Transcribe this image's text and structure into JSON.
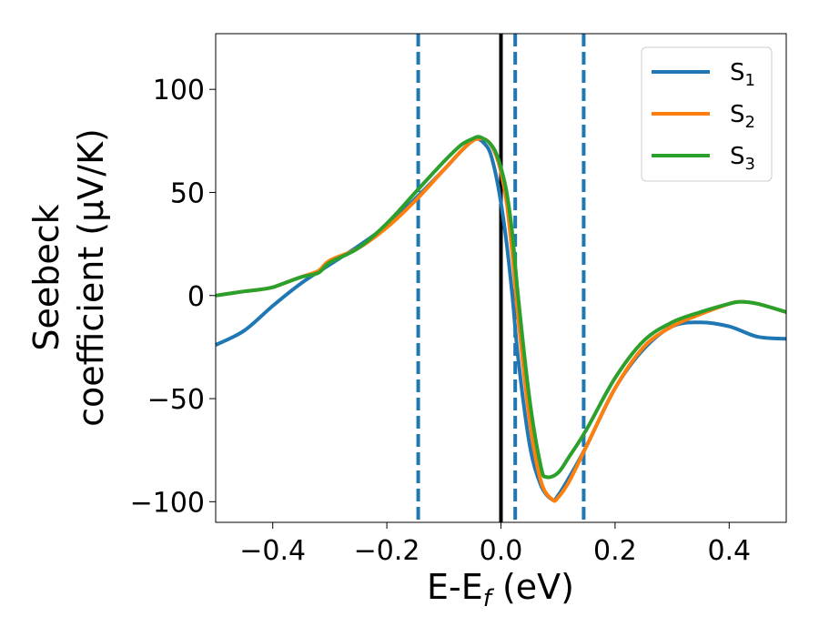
{
  "chart_data": {
    "type": "line",
    "title": "",
    "xlabel": {
      "main": "E-E",
      "sub": "f",
      "suffix": " (eV)"
    },
    "ylabel": {
      "line1": "Seebeck",
      "line2": "coefficient  (μV/K)"
    },
    "xlim": [
      -0.5,
      0.5
    ],
    "ylim": [
      -110,
      127
    ],
    "xticks": [
      -0.4,
      -0.2,
      0.0,
      0.2,
      0.4
    ],
    "xtick_labels": [
      "−0.4",
      "−0.2",
      "0.0",
      "0.2",
      "0.4"
    ],
    "yticks": [
      -100,
      -50,
      0,
      50,
      100
    ],
    "ytick_labels": [
      "−100",
      "−50",
      "0",
      "50",
      "100"
    ],
    "grid": false,
    "legend_position": "top-right",
    "vlines": [
      {
        "x": -0.145,
        "style": "dashed",
        "color": "#1f77b4"
      },
      {
        "x": 0.0,
        "style": "solid",
        "color": "#000000"
      },
      {
        "x": 0.025,
        "style": "dashed",
        "color": "#1f77b4"
      },
      {
        "x": 0.145,
        "style": "dashed",
        "color": "#1f77b4"
      }
    ],
    "series": [
      {
        "name": "S",
        "sub": "1",
        "color": "#1f77b4",
        "x": [
          -0.5,
          -0.45,
          -0.4,
          -0.35,
          -0.3,
          -0.25,
          -0.2,
          -0.15,
          -0.1,
          -0.07,
          -0.05,
          -0.04,
          -0.03,
          -0.02,
          -0.01,
          0.0,
          0.01,
          0.02,
          0.03,
          0.05,
          0.07,
          0.09,
          0.1,
          0.12,
          0.15,
          0.2,
          0.25,
          0.3,
          0.35,
          0.4,
          0.45,
          0.5
        ],
        "y": [
          -24,
          -17,
          -5,
          6,
          15,
          24,
          34,
          47,
          61,
          70,
          75,
          76,
          74,
          70,
          60,
          45,
          25,
          0,
          -30,
          -72,
          -92,
          -99,
          -97,
          -88,
          -73,
          -45,
          -26,
          -15,
          -13,
          -15,
          -20,
          -21
        ]
      },
      {
        "name": "S",
        "sub": "2",
        "color": "#ff7f0e",
        "x": [
          -0.5,
          -0.45,
          -0.42,
          -0.4,
          -0.38,
          -0.35,
          -0.32,
          -0.3,
          -0.25,
          -0.2,
          -0.15,
          -0.1,
          -0.07,
          -0.05,
          -0.04,
          -0.03,
          -0.02,
          -0.01,
          0.0,
          0.01,
          0.02,
          0.03,
          0.05,
          0.07,
          0.09,
          0.1,
          0.12,
          0.15,
          0.2,
          0.25,
          0.3,
          0.35,
          0.4,
          0.42,
          0.45,
          0.5
        ],
        "y": [
          0,
          2,
          3,
          4,
          6,
          9,
          12,
          17,
          23,
          33,
          46,
          61,
          70,
          75,
          76,
          76,
          74,
          69,
          60,
          45,
          20,
          -10,
          -60,
          -90,
          -99,
          -98,
          -90,
          -73,
          -45,
          -25,
          -15,
          -9,
          -4,
          -3,
          -4,
          -8
        ]
      },
      {
        "name": "S",
        "sub": "3",
        "color": "#2ca02c",
        "x": [
          -0.5,
          -0.45,
          -0.42,
          -0.4,
          -0.38,
          -0.35,
          -0.32,
          -0.3,
          -0.25,
          -0.2,
          -0.15,
          -0.1,
          -0.07,
          -0.05,
          -0.04,
          -0.03,
          -0.02,
          -0.01,
          0.0,
          0.01,
          0.02,
          0.03,
          0.05,
          0.07,
          0.08,
          0.1,
          0.12,
          0.15,
          0.2,
          0.25,
          0.3,
          0.35,
          0.4,
          0.42,
          0.45,
          0.5
        ],
        "y": [
          0,
          2,
          3,
          4,
          6,
          9,
          11,
          16,
          23,
          35,
          50,
          65,
          73,
          76,
          77,
          76,
          74,
          70,
          62,
          50,
          30,
          0,
          -50,
          -83,
          -88,
          -86,
          -78,
          -65,
          -40,
          -22,
          -13,
          -8,
          -4,
          -3,
          -4,
          -8
        ]
      }
    ]
  }
}
